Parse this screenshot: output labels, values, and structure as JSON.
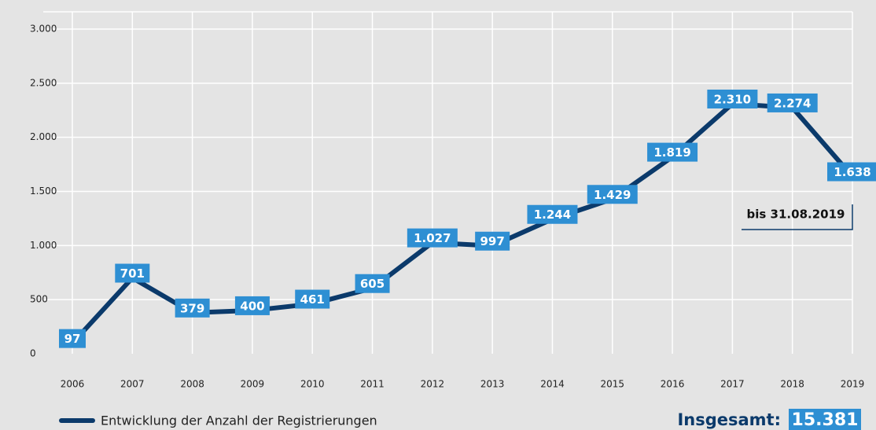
{
  "chart_data": {
    "type": "line",
    "categories": [
      "2006",
      "2007",
      "2008",
      "2009",
      "2010",
      "2011",
      "2012",
      "2013",
      "2014",
      "2015",
      "2016",
      "2017",
      "2018",
      "2019"
    ],
    "series": [
      {
        "name": "Entwicklung der Anzahl der Registrierungen",
        "color": "#0b3a6b",
        "values": [
          97,
          701,
          379,
          400,
          461,
          605,
          1027,
          997,
          1244,
          1429,
          1819,
          2310,
          2274,
          1638
        ],
        "value_labels": [
          "97",
          "701",
          "379",
          "400",
          "461",
          "605",
          "1.027",
          "997",
          "1.244",
          "1.429",
          "1.819",
          "2.310",
          "2.274",
          "1.638"
        ],
        "label_color": "#2e8fd3"
      }
    ],
    "ylim": [
      0,
      3000
    ],
    "yticks": [
      0,
      500,
      {
        "value": 1000,
        "label": "1.000"
      },
      {
        "value": 1500,
        "label": "1.500"
      },
      {
        "value": 2000,
        "label": "2.000"
      },
      {
        "value": 2500,
        "label": "2.500"
      },
      {
        "value": 3000,
        "label": "3.000"
      }
    ],
    "grid": true,
    "annotation": "bis 31.08.2019",
    "total": {
      "label": "Insgesamt:",
      "value": "15.381"
    }
  }
}
